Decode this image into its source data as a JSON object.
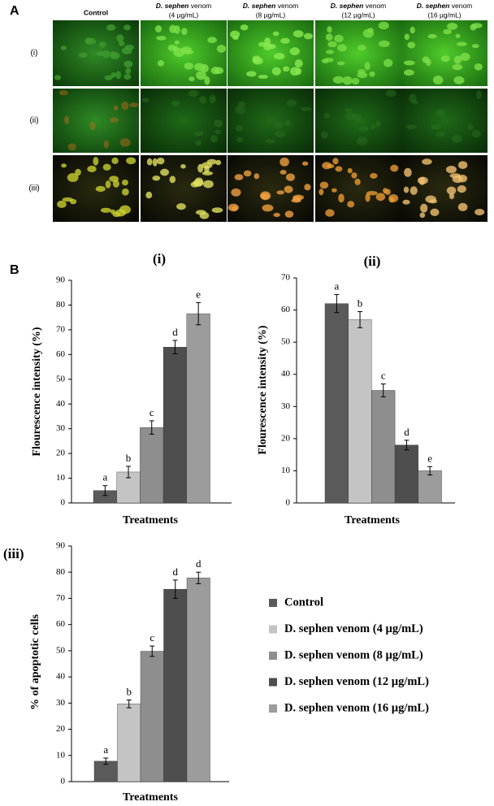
{
  "figure_a": {
    "label": "A",
    "columns": [
      {
        "text": "Control"
      },
      {
        "italic": "D. sephen",
        "text": " venom",
        "dose": "(4 µg/mL)"
      },
      {
        "italic": "D. sephen",
        "text": " venom",
        "dose": "(8 µg/mL)"
      },
      {
        "italic": "D. sephen",
        "text": " venom",
        "dose": "(12 µg/mL)"
      },
      {
        "italic": "D. sephen",
        "text": " venom",
        "dose": "(16 µg/mL)"
      }
    ],
    "rows": [
      "(i)",
      "(ii)",
      "(iii)"
    ]
  },
  "figure_b_label": "B",
  "legend": [
    {
      "name": "Control",
      "color": "#5a5a5a"
    },
    {
      "name": "D. sephen venom (4 µg/mL)",
      "color": "#c4c4c4"
    },
    {
      "name": "D. sephen venom (8 µg/mL)",
      "color": "#8e8e8e"
    },
    {
      "name": "D. sephen venom (12 µg/mL)",
      "color": "#4e4e4e"
    },
    {
      "name": "D. sephen venom (16 µg/mL)",
      "color": "#9c9c9c"
    }
  ],
  "chart_data": [
    {
      "type": "bar",
      "title": "(i)",
      "y_label": "Flourescence intensity (%)",
      "x_label": "Treatments",
      "values": [
        5,
        12.5,
        30.5,
        63,
        76.5
      ],
      "errors": [
        2,
        2.3,
        2.7,
        2.7,
        4.5
      ],
      "letters": [
        "a",
        "b",
        "c",
        "d",
        "e"
      ],
      "ylim": [
        0,
        90
      ],
      "yticks": [
        0,
        10,
        20,
        30,
        40,
        50,
        60,
        70,
        80,
        90
      ]
    },
    {
      "type": "bar",
      "title": "(ii)",
      "y_label": "Flourescence intensity (%)",
      "x_label": "Treatments",
      "values": [
        62,
        57,
        35,
        18,
        10
      ],
      "errors": [
        2.8,
        2.5,
        2,
        1.5,
        1.3
      ],
      "letters": [
        "a",
        "b",
        "c",
        "d",
        "e"
      ],
      "ylim": [
        0,
        70
      ],
      "yticks": [
        0,
        10,
        20,
        30,
        40,
        50,
        60,
        70
      ]
    },
    {
      "type": "bar",
      "title": "(iii)",
      "y_label": "% of apoptotic cells",
      "x_label": "Treatments",
      "values": [
        7.8,
        29.7,
        49.8,
        73.5,
        77.8
      ],
      "errors": [
        1.2,
        1.5,
        2,
        3.5,
        2.2
      ],
      "letters": [
        "a",
        "b",
        "c",
        "d",
        "d"
      ],
      "ylim": [
        0,
        90
      ],
      "yticks": [
        0,
        10,
        20,
        30,
        40,
        50,
        60,
        70,
        80,
        90
      ]
    }
  ]
}
